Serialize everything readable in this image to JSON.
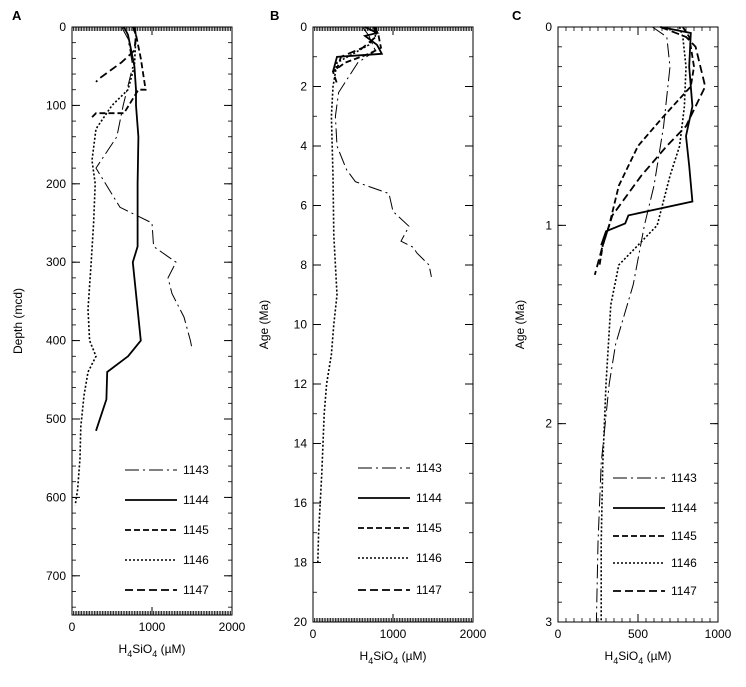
{
  "chart_data": [
    {
      "type": "line",
      "panel_label": "A",
      "xlabel": "H4SiO4 (µM)",
      "ylabel": "Depth (mcd)",
      "xlim": [
        0,
        2000
      ],
      "ylim": [
        0,
        750
      ],
      "y_inverted": true,
      "xticks": [
        0,
        1000,
        2000
      ],
      "yticks": [
        0,
        100,
        200,
        300,
        400,
        500,
        600,
        700
      ],
      "series": [
        {
          "name": "1143",
          "points": [
            [
              620,
              0
            ],
            [
              700,
              15
            ],
            [
              760,
              50
            ],
            [
              640,
              100
            ],
            [
              560,
              140
            ],
            [
              300,
              180
            ],
            [
              600,
              230
            ],
            [
              1000,
              250
            ],
            [
              1020,
              280
            ],
            [
              1300,
              300
            ],
            [
              1200,
              320
            ],
            [
              1250,
              340
            ],
            [
              1400,
              370
            ],
            [
              1480,
              400
            ],
            [
              1500,
              410
            ]
          ]
        },
        {
          "name": "1144",
          "points": [
            [
              650,
              0
            ],
            [
              700,
              10
            ],
            [
              780,
              50
            ],
            [
              800,
              80
            ],
            [
              800,
              100
            ],
            [
              830,
              140
            ],
            [
              820,
              200
            ],
            [
              820,
              280
            ],
            [
              760,
              300
            ],
            [
              820,
              360
            ],
            [
              860,
              400
            ],
            [
              700,
              420
            ],
            [
              440,
              440
            ],
            [
              430,
              475
            ],
            [
              300,
              515
            ]
          ]
        },
        {
          "name": "1145",
          "points": [
            [
              780,
              0
            ],
            [
              800,
              10
            ],
            [
              860,
              40
            ],
            [
              920,
              80
            ],
            [
              830,
              80
            ],
            [
              650,
              110
            ],
            [
              300,
              110
            ],
            [
              250,
              115
            ]
          ]
        },
        {
          "name": "1146",
          "points": [
            [
              760,
              0
            ],
            [
              800,
              10
            ],
            [
              780,
              50
            ],
            [
              700,
              80
            ],
            [
              500,
              100
            ],
            [
              300,
              130
            ],
            [
              250,
              170
            ],
            [
              290,
              200
            ],
            [
              270,
              250
            ],
            [
              240,
              300
            ],
            [
              200,
              360
            ],
            [
              220,
              400
            ],
            [
              300,
              420
            ],
            [
              200,
              440
            ],
            [
              150,
              470
            ],
            [
              110,
              510
            ],
            [
              100,
              550
            ],
            [
              70,
              590
            ],
            [
              40,
              610
            ]
          ]
        },
        {
          "name": "1147",
          "points": [
            [
              760,
              0
            ],
            [
              800,
              10
            ],
            [
              780,
              30
            ],
            [
              620,
              45
            ],
            [
              350,
              65
            ],
            [
              300,
              70
            ]
          ]
        }
      ]
    },
    {
      "type": "line",
      "panel_label": "B",
      "xlabel": "H4SiO4 (µM)",
      "ylabel": "Age (Ma)",
      "xlim": [
        0,
        2000
      ],
      "ylim": [
        0,
        20
      ],
      "y_inverted": true,
      "xticks": [
        0,
        1000,
        2000
      ],
      "yticks": [
        0,
        2,
        4,
        6,
        8,
        10,
        12,
        14,
        16,
        18,
        20
      ],
      "series": [
        {
          "name": "1143",
          "points": [
            [
              620,
              0
            ],
            [
              700,
              0.3
            ],
            [
              780,
              0.8
            ],
            [
              560,
              1.2
            ],
            [
              320,
              2.2
            ],
            [
              280,
              3
            ],
            [
              300,
              4
            ],
            [
              420,
              4.8
            ],
            [
              530,
              5.2
            ],
            [
              950,
              5.6
            ],
            [
              1000,
              6.2
            ],
            [
              1200,
              6.7
            ],
            [
              1100,
              7.2
            ],
            [
              1250,
              7.4
            ],
            [
              1300,
              7.6
            ],
            [
              1450,
              8
            ],
            [
              1480,
              8.4
            ]
          ]
        },
        {
          "name": "1144",
          "points": [
            [
              650,
              0
            ],
            [
              800,
              0.2
            ],
            [
              650,
              0.3
            ],
            [
              800,
              0.6
            ],
            [
              860,
              0.9
            ],
            [
              300,
              1
            ],
            [
              250,
              1.5
            ]
          ]
        },
        {
          "name": "1145",
          "points": [
            [
              780,
              0
            ],
            [
              820,
              0.3
            ],
            [
              850,
              0.7
            ],
            [
              700,
              0.9
            ],
            [
              400,
              1.2
            ],
            [
              250,
              1.5
            ],
            [
              300,
              1.9
            ]
          ]
        },
        {
          "name": "1146",
          "points": [
            [
              760,
              0
            ],
            [
              780,
              0.3
            ],
            [
              700,
              0.6
            ],
            [
              500,
              0.9
            ],
            [
              300,
              1.2
            ],
            [
              250,
              2
            ],
            [
              230,
              3
            ],
            [
              250,
              5
            ],
            [
              260,
              7
            ],
            [
              280,
              8
            ],
            [
              300,
              9
            ],
            [
              260,
              10
            ],
            [
              230,
              11
            ],
            [
              170,
              12
            ],
            [
              140,
              13
            ],
            [
              110,
              15
            ],
            [
              90,
              16
            ],
            [
              70,
              17
            ],
            [
              60,
              18
            ]
          ]
        },
        {
          "name": "1147",
          "points": [
            [
              760,
              0
            ],
            [
              800,
              0.3
            ],
            [
              620,
              0.7
            ],
            [
              350,
              1
            ],
            [
              300,
              1.4
            ]
          ]
        }
      ],
      "legend": [
        "1143",
        "1144",
        "1145",
        "1146",
        "1147"
      ]
    },
    {
      "type": "line",
      "panel_label": "C",
      "xlabel": "H4SiO4 (µM)",
      "ylabel": "Age (Ma)",
      "xlim": [
        0,
        1000
      ],
      "ylim": [
        0,
        3
      ],
      "y_inverted": true,
      "xticks": [
        0,
        500,
        1000
      ],
      "yticks": [
        0,
        1,
        2,
        3
      ],
      "series": [
        {
          "name": "1143",
          "points": [
            [
              590,
              0
            ],
            [
              680,
              0.05
            ],
            [
              700,
              0.2
            ],
            [
              660,
              0.5
            ],
            [
              600,
              0.8
            ],
            [
              540,
              1
            ],
            [
              470,
              1.3
            ],
            [
              360,
              1.6
            ],
            [
              320,
              1.8
            ],
            [
              270,
              2.2
            ],
            [
              250,
              2.6
            ],
            [
              240,
              3
            ]
          ]
        },
        {
          "name": "1144",
          "points": [
            [
              640,
              0
            ],
            [
              830,
              0.03
            ],
            [
              820,
              0.2
            ],
            [
              840,
              0.4
            ],
            [
              800,
              0.55
            ],
            [
              820,
              0.7
            ],
            [
              840,
              0.88
            ],
            [
              440,
              0.95
            ],
            [
              420,
              0.99
            ],
            [
              300,
              1.03
            ],
            [
              270,
              1.1
            ]
          ]
        },
        {
          "name": "1145",
          "points": [
            [
              780,
              0
            ],
            [
              820,
              0.05
            ],
            [
              850,
              0.2
            ],
            [
              830,
              0.3
            ],
            [
              660,
              0.45
            ],
            [
              500,
              0.6
            ],
            [
              380,
              0.8
            ],
            [
              320,
              1
            ],
            [
              280,
              1.1
            ],
            [
              260,
              1.2
            ]
          ]
        },
        {
          "name": "1146",
          "points": [
            [
              760,
              0
            ],
            [
              780,
              0.05
            ],
            [
              800,
              0.2
            ],
            [
              790,
              0.4
            ],
            [
              760,
              0.6
            ],
            [
              700,
              0.75
            ],
            [
              620,
              1
            ],
            [
              500,
              1.1
            ],
            [
              380,
              1.2
            ],
            [
              330,
              1.4
            ],
            [
              300,
              1.8
            ],
            [
              280,
              2.2
            ],
            [
              270,
              2.6
            ],
            [
              270,
              3
            ]
          ]
        },
        {
          "name": "1147",
          "points": [
            [
              640,
              0
            ],
            [
              800,
              0.05
            ],
            [
              860,
              0.1
            ],
            [
              920,
              0.3
            ],
            [
              800,
              0.5
            ],
            [
              680,
              0.6
            ],
            [
              520,
              0.75
            ],
            [
              340,
              0.95
            ],
            [
              280,
              1.1
            ],
            [
              230,
              1.25
            ]
          ]
        }
      ],
      "legend": [
        "1143",
        "1144",
        "1145",
        "1146",
        "1147"
      ]
    }
  ],
  "legend_labels": [
    "1143",
    "1144",
    "1145",
    "1146",
    "1147"
  ]
}
